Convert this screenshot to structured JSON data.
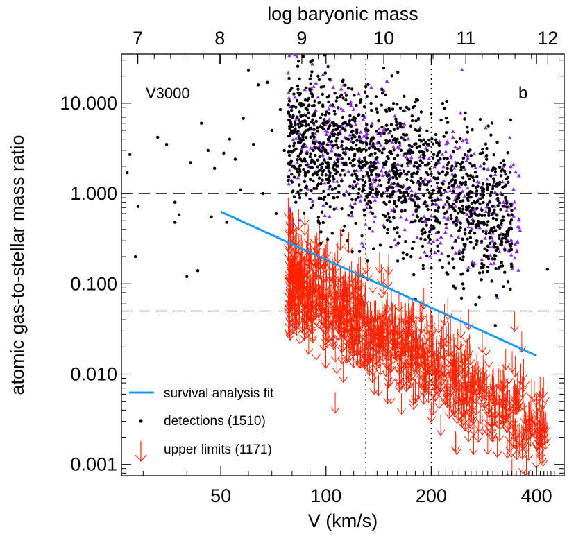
{
  "chart_data": {
    "type": "scatter",
    "title": "",
    "sample_label": "V3000",
    "panel_label": "b",
    "xlabel": "V (km/s)",
    "top_xlabel": "log baryonic mass",
    "ylabel": "atomic gas-to-stellar mass ratio",
    "x_scale": "log",
    "y_scale": "log",
    "xlim": [
      26,
      480
    ],
    "ylim": [
      0.00075,
      35
    ],
    "top_axis_lim": [
      6.8,
      12.2
    ],
    "x_ticks": [
      {
        "value": 50,
        "label": "50"
      },
      {
        "value": 100,
        "label": "100"
      },
      {
        "value": 200,
        "label": "200"
      },
      {
        "value": 400,
        "label": "400"
      }
    ],
    "y_ticks": [
      {
        "value": 0.001,
        "label": "0.001"
      },
      {
        "value": 0.01,
        "label": "0.010"
      },
      {
        "value": 0.1,
        "label": "0.100"
      },
      {
        "value": 1,
        "label": "1.000"
      },
      {
        "value": 10,
        "label": "10.000"
      }
    ],
    "top_ticks": [
      {
        "value": 7,
        "label": "7"
      },
      {
        "value": 8,
        "label": "8"
      },
      {
        "value": 9,
        "label": "9"
      },
      {
        "value": 10,
        "label": "10"
      },
      {
        "value": 11,
        "label": "11"
      },
      {
        "value": 12,
        "label": "12"
      }
    ],
    "horizontal_reference_lines": [
      1.0,
      0.05
    ],
    "vertical_reference_lines": [
      130,
      200
    ],
    "fit_line": {
      "name": "survival analysis fit",
      "color": "#1a9bf0",
      "points": [
        [
          50,
          0.63
        ],
        [
          400,
          0.016
        ]
      ]
    },
    "series": [
      {
        "name": "detections (1510)",
        "marker": "dot",
        "color": "#000000"
      },
      {
        "name": "upper limits (1171)",
        "marker": "down-arrow",
        "color": "#ff2200"
      },
      {
        "marker": "triangle",
        "color": "#8a2be2"
      }
    ],
    "legend_placement": "bottom-left",
    "grid": false,
    "sampled_points": {
      "detections": [
        [
          27,
          1.7
        ],
        [
          27.5,
          2.7
        ],
        [
          29,
          0.72
        ],
        [
          28.5,
          0.2
        ],
        [
          33,
          4.2
        ],
        [
          35,
          3.5
        ],
        [
          37,
          0.48
        ],
        [
          37,
          0.8
        ],
        [
          38,
          0.58
        ],
        [
          40,
          0.12
        ],
        [
          41,
          2.2
        ],
        [
          43,
          0.14
        ],
        [
          44,
          6.0
        ],
        [
          46,
          3.0
        ],
        [
          47,
          0.55
        ],
        [
          48,
          1.9
        ],
        [
          51,
          2.8
        ],
        [
          52,
          0.48
        ],
        [
          53,
          4.0
        ],
        [
          55,
          2.4
        ],
        [
          57,
          1.1
        ],
        [
          58,
          6.8
        ],
        [
          60,
          23
        ],
        [
          62,
          3.5
        ],
        [
          64,
          16
        ],
        [
          66,
          1.0
        ],
        [
          68,
          17
        ],
        [
          70,
          5.0
        ],
        [
          72,
          0.6
        ],
        [
          74,
          8.5
        ],
        [
          76,
          3.0
        ],
        [
          78,
          1.4
        ],
        [
          80,
          5.5
        ],
        [
          81,
          2.0
        ],
        [
          82,
          0.8
        ],
        [
          84,
          8.0
        ],
        [
          86,
          4.2
        ],
        [
          88,
          1.2
        ],
        [
          90,
          14
        ],
        [
          92,
          3.0
        ],
        [
          95,
          0.5
        ],
        [
          98,
          6.0
        ],
        [
          100,
          2.2
        ],
        [
          102,
          12
        ],
        [
          105,
          0.9
        ],
        [
          108,
          4.5
        ],
        [
          110,
          1.6
        ],
        [
          112,
          18
        ],
        [
          115,
          0.3
        ],
        [
          118,
          3.2
        ],
        [
          120,
          7.0
        ],
        [
          124,
          1.0
        ],
        [
          128,
          0.12
        ],
        [
          132,
          5.0
        ],
        [
          136,
          0.6
        ],
        [
          140,
          2.5
        ],
        [
          145,
          13
        ],
        [
          150,
          0.4
        ],
        [
          155,
          1.8
        ],
        [
          160,
          4.0
        ],
        [
          165,
          0.8
        ],
        [
          170,
          9.0
        ],
        [
          175,
          0.2
        ],
        [
          180,
          2.2
        ],
        [
          185,
          0.5
        ],
        [
          190,
          3.5
        ],
        [
          195,
          1.1
        ],
        [
          200,
          0.15
        ],
        [
          210,
          0.7
        ],
        [
          220,
          1.6
        ],
        [
          230,
          0.25
        ],
        [
          240,
          0.9
        ],
        [
          250,
          0.4
        ],
        [
          260,
          0.6
        ],
        [
          270,
          0.3
        ],
        [
          280,
          0.48
        ],
        [
          300,
          0.38
        ],
        [
          330,
          0.36
        ],
        [
          430,
          0.145
        ]
      ],
      "upper_limits": [
        [
          78,
          0.9
        ],
        [
          80,
          0.6
        ],
        [
          82,
          0.45
        ],
        [
          85,
          0.35
        ],
        [
          88,
          0.3
        ],
        [
          90,
          0.25
        ],
        [
          95,
          0.2
        ],
        [
          100,
          0.18
        ],
        [
          105,
          0.15
        ],
        [
          110,
          0.12
        ],
        [
          115,
          0.1
        ],
        [
          120,
          0.08
        ],
        [
          125,
          0.07
        ],
        [
          130,
          0.06
        ],
        [
          135,
          0.05
        ],
        [
          140,
          0.045
        ],
        [
          150,
          0.04
        ],
        [
          160,
          0.035
        ],
        [
          170,
          0.03
        ],
        [
          180,
          0.025
        ],
        [
          190,
          0.022
        ],
        [
          200,
          0.02
        ],
        [
          210,
          0.018
        ],
        [
          220,
          0.016
        ],
        [
          230,
          0.014
        ],
        [
          240,
          0.012
        ],
        [
          250,
          0.011
        ],
        [
          260,
          0.01
        ],
        [
          280,
          0.009
        ],
        [
          300,
          0.008
        ],
        [
          320,
          0.007
        ],
        [
          350,
          0.006
        ],
        [
          380,
          0.005
        ],
        [
          420,
          0.004
        ],
        [
          90,
          0.05
        ],
        [
          100,
          0.04
        ],
        [
          120,
          0.02
        ],
        [
          150,
          0.008
        ],
        [
          200,
          0.005
        ],
        [
          250,
          0.004
        ],
        [
          300,
          0.003
        ],
        [
          330,
          0.002
        ]
      ]
    }
  }
}
